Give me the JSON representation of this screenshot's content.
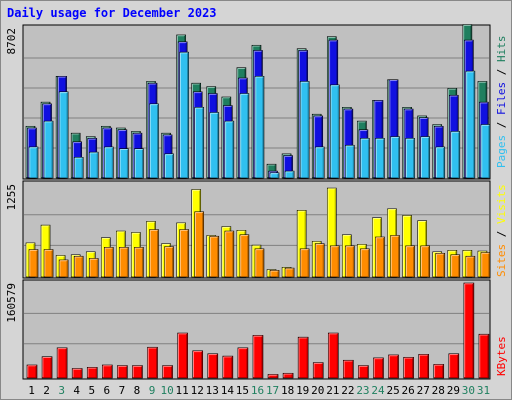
{
  "title": "Daily usage for December 2023",
  "colors": {
    "background": "#D5D5D5",
    "plot_bg": "#C0C0C0",
    "gridline": "#808080",
    "title": "#0000FF",
    "hits": "#1F7F5F",
    "files": "#1010E0",
    "pages": "#30C0F0",
    "visits": "#FFFF00",
    "sites": "#FF8C00",
    "kbytes": "#FF0000",
    "day_normal": "#000000",
    "day_weekend": "#208060"
  },
  "chart_data": [
    {
      "type": "bar",
      "name": "hits-files-pages",
      "ymax": 8702,
      "ymax_label": "8702",
      "categories": [
        "1",
        "2",
        "3",
        "4",
        "5",
        "6",
        "7",
        "8",
        "9",
        "10",
        "11",
        "12",
        "13",
        "14",
        "15",
        "16",
        "17",
        "18",
        "19",
        "20",
        "21",
        "22",
        "23",
        "24",
        "25",
        "26",
        "27",
        "28",
        "29",
        "30",
        "31"
      ],
      "series": [
        {
          "name": "Hits",
          "values": [
            3000,
            4400,
            5900,
            2600,
            2400,
            3000,
            2900,
            2700,
            5600,
            2600,
            8300,
            5500,
            5300,
            4700,
            6400,
            7700,
            800,
            1400,
            7500,
            3700,
            8200,
            4100,
            3300,
            4500,
            5700,
            4100,
            3600,
            3100,
            5200,
            8900,
            5600
          ]
        },
        {
          "name": "Files",
          "values": [
            2900,
            4300,
            5900,
            2100,
            2300,
            2900,
            2800,
            2600,
            5500,
            2500,
            7900,
            5000,
            4900,
            4200,
            5800,
            7400,
            400,
            1300,
            7400,
            3600,
            8000,
            4000,
            2800,
            4500,
            5700,
            4000,
            3500,
            3000,
            4800,
            8000,
            4400
          ]
        },
        {
          "name": "Pages",
          "values": [
            1800,
            3300,
            5000,
            1200,
            1500,
            1800,
            1700,
            1700,
            4300,
            1400,
            7300,
            4100,
            3800,
            3300,
            4900,
            5900,
            300,
            400,
            5600,
            1800,
            5400,
            1900,
            2300,
            2300,
            2400,
            2300,
            2400,
            1800,
            2700,
            6200,
            3100
          ]
        }
      ],
      "legend": [
        "Pages",
        "Files",
        "Hits"
      ]
    },
    {
      "type": "bar",
      "name": "visits-sites",
      "ymax": 1255,
      "ymax_label": "1255",
      "categories": [
        "1",
        "2",
        "3",
        "4",
        "5",
        "6",
        "7",
        "8",
        "9",
        "10",
        "11",
        "12",
        "13",
        "14",
        "15",
        "16",
        "17",
        "18",
        "19",
        "20",
        "21",
        "22",
        "23",
        "24",
        "25",
        "26",
        "27",
        "28",
        "29",
        "30",
        "31"
      ],
      "series": [
        {
          "name": "Visits",
          "values": [
            460,
            700,
            290,
            300,
            340,
            530,
            620,
            600,
            750,
            450,
            730,
            1180,
            560,
            680,
            630,
            430,
            100,
            130,
            900,
            480,
            1200,
            570,
            440,
            800,
            920,
            830,
            760,
            340,
            360,
            360,
            350
          ]
        },
        {
          "name": "Sites",
          "values": [
            370,
            370,
            230,
            280,
            250,
            400,
            400,
            400,
            640,
            410,
            640,
            880,
            550,
            620,
            570,
            380,
            90,
            120,
            380,
            450,
            420,
            420,
            380,
            540,
            560,
            420,
            420,
            320,
            300,
            280,
            330
          ]
        }
      ],
      "legend": [
        "Sites",
        "Visits"
      ]
    },
    {
      "type": "bar",
      "name": "kbytes",
      "ymax": 160579,
      "ymax_label": "160579",
      "categories": [
        "1",
        "2",
        "3",
        "4",
        "5",
        "6",
        "7",
        "8",
        "9",
        "10",
        "11",
        "12",
        "13",
        "14",
        "15",
        "16",
        "17",
        "18",
        "19",
        "20",
        "21",
        "22",
        "23",
        "24",
        "25",
        "26",
        "27",
        "28",
        "29",
        "30",
        "31"
      ],
      "series": [
        {
          "name": "KBytes",
          "values": [
            22000,
            36000,
            51000,
            16000,
            18000,
            22000,
            21000,
            21000,
            52000,
            21000,
            76000,
            46000,
            41000,
            37000,
            51000,
            72000,
            6000,
            8000,
            69000,
            26000,
            76000,
            30000,
            21000,
            34000,
            39000,
            35000,
            40000,
            23000,
            41000,
            160579,
            74000
          ]
        }
      ],
      "legend": [
        "KBytes"
      ]
    }
  ],
  "day_colors": [
    "day_normal",
    "day_normal",
    "day_weekend",
    "day_normal",
    "day_normal",
    "day_normal",
    "day_normal",
    "day_normal",
    "day_weekend",
    "day_weekend",
    "day_normal",
    "day_normal",
    "day_normal",
    "day_normal",
    "day_normal",
    "day_weekend",
    "day_weekend",
    "day_normal",
    "day_normal",
    "day_normal",
    "day_normal",
    "day_normal",
    "day_weekend",
    "day_weekend",
    "day_normal",
    "day_normal",
    "day_normal",
    "day_normal",
    "day_normal",
    "day_weekend",
    "day_weekend"
  ]
}
